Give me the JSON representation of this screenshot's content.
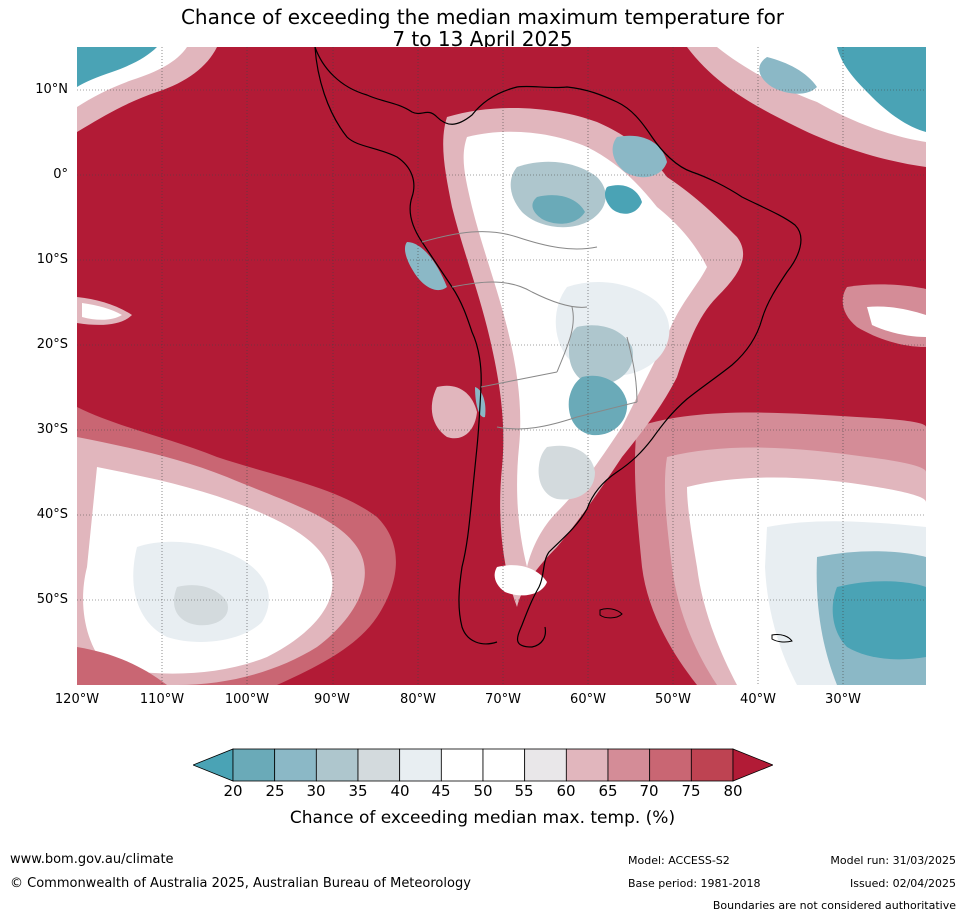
{
  "title": {
    "line1": "Chance of exceeding the median maximum temperature for",
    "line2": "7 to 13 April 2025"
  },
  "map": {
    "region": "South America",
    "lat_labels": [
      "10°N",
      "0°",
      "10°S",
      "20°S",
      "30°S",
      "40°S",
      "50°S"
    ],
    "lon_labels": [
      "120°W",
      "110°W",
      "100°W",
      "90°W",
      "80°W",
      "70°W",
      "60°W",
      "50°W",
      "40°W",
      "30°W"
    ]
  },
  "colorbar": {
    "ticks": [
      "20",
      "25",
      "30",
      "35",
      "40",
      "45",
      "50",
      "55",
      "60",
      "65",
      "70",
      "75",
      "80"
    ],
    "label": "Chance of exceeding median max. temp. (%)",
    "under_color": "#4aa3b5",
    "over_color": "#b21b36",
    "colors": [
      "#6aaab8",
      "#8bb8c6",
      "#aec6cd",
      "#d3dadd",
      "#e8eef2",
      "#ffffff",
      "#ffffff",
      "#e9e7e9",
      "#e1b6bd",
      "#d48c97",
      "#c96673",
      "#be4352"
    ]
  },
  "footer": {
    "website": "www.bom.gov.au/climate",
    "copyright": "© Commonwealth of Australia 2025, Australian Bureau of Meteorology",
    "model": "Model: ACCESS-S2",
    "base_period": "Base period: 1981-2018",
    "model_run": "Model run: 31/03/2025",
    "issued": "Issued: 02/04/2025",
    "disclaimer": "Boundaries are not considered authoritative"
  }
}
